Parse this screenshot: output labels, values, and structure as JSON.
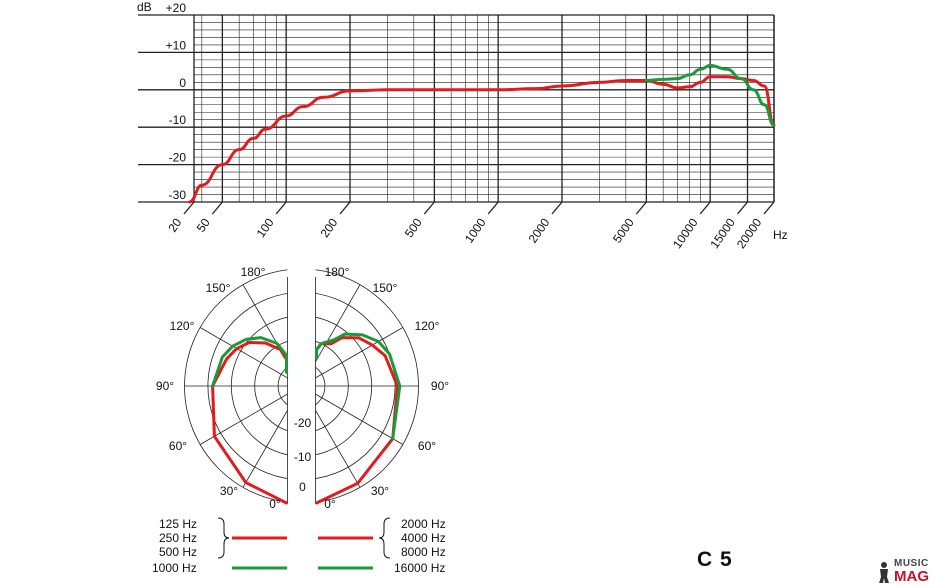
{
  "model": "C 5",
  "watermark": {
    "music": "MUSIC",
    "mag": "MAG"
  },
  "colors": {
    "red": "#e01c1c",
    "green": "#1a9a3a",
    "grid": "#222222"
  },
  "chart_data": [
    {
      "type": "line",
      "xlabel": "Hz",
      "ylabel": "dB",
      "x_scale": "log",
      "xlim": [
        20,
        20000
      ],
      "ylim": [
        -30,
        20
      ],
      "x_ticks": [
        20,
        50,
        100,
        200,
        500,
        1000,
        2000,
        5000,
        10000,
        15000,
        20000
      ],
      "x_tick_labels": [
        "20",
        "50",
        "100",
        "200",
        "500",
        "1000",
        "2000",
        "5000",
        "10000",
        "15000",
        "20000"
      ],
      "y_ticks": [
        20,
        10,
        0,
        -10,
        -20,
        -30
      ],
      "y_tick_labels": [
        "+20",
        "+10",
        "0",
        "-10",
        "-20",
        "-30"
      ],
      "grid": true,
      "series": [
        {
          "color": "red",
          "x": [
            35,
            40,
            50,
            60,
            70,
            80,
            100,
            120,
            150,
            200,
            300,
            500,
            1000,
            1500,
            2000,
            3000,
            4000,
            5000,
            6000,
            7000,
            8000,
            9000,
            10000,
            12000,
            14000,
            16000,
            18000,
            20000
          ],
          "y": [
            -30,
            -25.5,
            -20,
            -16,
            -13,
            -10.5,
            -7,
            -4.5,
            -2,
            -0.3,
            0,
            0,
            0,
            0.3,
            1,
            2,
            2.5,
            2.5,
            1.5,
            0.5,
            0.8,
            2,
            3.5,
            3.5,
            3,
            2.5,
            1,
            -9.5
          ]
        },
        {
          "color": "green",
          "x": [
            5000,
            6000,
            7000,
            8000,
            9000,
            10000,
            12000,
            14000,
            16000,
            18000,
            20000
          ],
          "y": [
            2.5,
            2.8,
            3,
            4,
            5.5,
            6.5,
            5.5,
            3,
            0,
            -4,
            -9.5
          ]
        }
      ]
    },
    {
      "type": "polar",
      "angle_labels": [
        "180°",
        "150°",
        "120°",
        "90°",
        "60°",
        "30°",
        "0°"
      ],
      "radial_labels": [
        "-20",
        "-10",
        "0"
      ],
      "rlim": [
        -25,
        0
      ],
      "series": [
        {
          "name": "125 Hz / 250 Hz / 500 Hz",
          "color": "red",
          "angle": [
            0,
            30,
            60,
            90,
            110,
            120,
            130,
            140,
            150,
            160,
            170
          ],
          "db": [
            0,
            -1.2,
            -3.5,
            -6,
            -8,
            -9,
            -10.5,
            -13,
            -16,
            -19,
            -22
          ]
        },
        {
          "name": "1000 Hz",
          "color": "green",
          "angle": [
            90,
            110,
            120,
            130,
            140,
            150,
            160,
            170
          ],
          "db": [
            -6,
            -7,
            -8,
            -9.5,
            -11.5,
            -14.5,
            -18,
            -22
          ]
        },
        {
          "name": "2000 Hz / 4000 Hz / 8000 Hz",
          "color": "red",
          "angle": [
            0,
            30,
            60,
            90,
            110,
            120,
            130,
            140,
            145,
            155,
            165,
            170
          ],
          "db": [
            0,
            -1,
            -2.5,
            -4.5,
            -6,
            -7.5,
            -9,
            -11.5,
            -14,
            -15,
            -17,
            -19
          ]
        },
        {
          "name": "16000 Hz",
          "color": "green",
          "angle": [
            60,
            90,
            110,
            120,
            130,
            140,
            145,
            155,
            165,
            170
          ],
          "db": [
            -2.5,
            -4,
            -5,
            -6,
            -8,
            -10.5,
            -13,
            -15,
            -17,
            -19
          ]
        }
      ]
    }
  ],
  "legend": {
    "left": [
      "125 Hz",
      "250 Hz",
      "500 Hz",
      "1000 Hz"
    ],
    "right": [
      "2000 Hz",
      "4000 Hz",
      "8000 Hz",
      "16000 Hz"
    ]
  }
}
